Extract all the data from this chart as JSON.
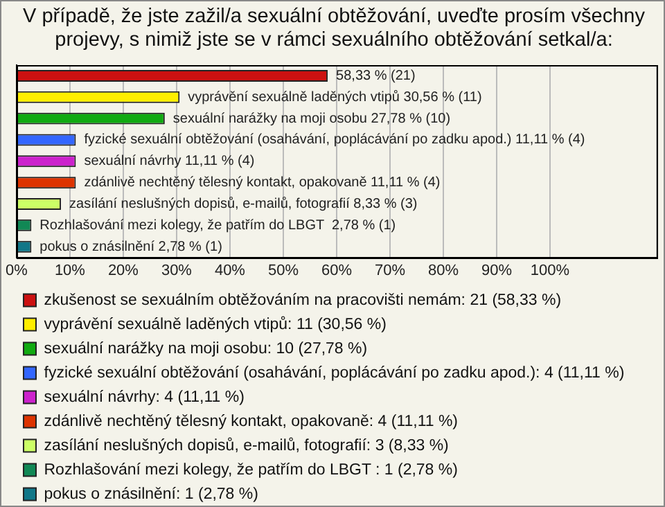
{
  "chart_data": {
    "type": "bar",
    "orientation": "horizontal",
    "title": "V případě, že jste zažil/a sexuální obtěžování, uveďte prosím všechny projevy, s nimiž jste se v rámci sexuálního obtěžování setkal/a:",
    "categories": [
      null,
      null,
      null,
      null,
      null,
      null,
      null,
      null,
      null
    ],
    "series": [
      {
        "name": "zkušenost se sexuálním obtěžováním na pracovišti nemám: 21 (58,33 %)",
        "color": "#cc1111",
        "values": [
          58.33,
          null,
          null,
          null,
          null,
          null,
          null,
          null,
          null
        ],
        "value_labels": [
          "58,33 % (21)",
          null,
          null,
          null,
          null,
          null,
          null,
          null,
          null
        ]
      },
      {
        "name": "vyprávění sexuálně laděných vtipů: 11 (30,56 %)",
        "color": "#ffee00",
        "values": [
          null,
          30.56,
          null,
          null,
          null,
          null,
          null,
          null,
          null
        ],
        "value_labels": [
          null,
          "vyprávění sexuálně laděných vtipů 30,56 % (11)",
          null,
          null,
          null,
          null,
          null,
          null,
          null
        ]
      },
      {
        "name": "sexuální narážky na moji osobu: 10 (27,78 %)",
        "color": "#11aa11",
        "values": [
          null,
          null,
          27.78,
          null,
          null,
          null,
          null,
          null,
          null
        ],
        "value_labels": [
          null,
          null,
          "sexuální narážky na moji osobu 27,78 % (10)",
          null,
          null,
          null,
          null,
          null,
          null
        ]
      },
      {
        "name": "fyzické sexuální obtěžování (osahávání, poplácávání po zadku apod.): 4 (11,11 %)",
        "color": "#3366ff",
        "values": [
          null,
          null,
          null,
          11.11,
          null,
          null,
          null,
          null,
          null
        ],
        "value_labels": [
          null,
          null,
          null,
          "fyzické sexuální obtěžování (osahávání, poplácávání po zadku apod.) 11,11 % (4)",
          null,
          null,
          null,
          null,
          null
        ]
      },
      {
        "name": "sexuální návrhy: 4 (11,11 %)",
        "color": "#cc22cc",
        "values": [
          null,
          null,
          null,
          null,
          11.11,
          null,
          null,
          null,
          null
        ],
        "value_labels": [
          null,
          null,
          null,
          null,
          "sexuální návrhy 11,11 % (4)",
          null,
          null,
          null,
          null
        ]
      },
      {
        "name": "zdánlivě nechtěný tělesný kontakt, opakovaně: 4 (11,11 %)",
        "color": "#dd3300",
        "values": [
          null,
          null,
          null,
          null,
          null,
          11.11,
          null,
          null,
          null
        ],
        "value_labels": [
          null,
          null,
          null,
          null,
          null,
          "zdánlivě nechtěný tělesný kontakt, opakovaně 11,11 % (4)",
          null,
          null,
          null
        ]
      },
      {
        "name": "zasílání neslušných dopisů, e-mailů, fotografií: 3 (8,33 %)",
        "color": "#ccff66",
        "values": [
          null,
          null,
          null,
          null,
          null,
          null,
          8.33,
          null,
          null
        ],
        "value_labels": [
          null,
          null,
          null,
          null,
          null,
          null,
          "zasílání neslušných dopisů, e-mailů, fotografií 8,33 % (3)",
          null,
          null
        ]
      },
      {
        "name": "Rozhlašování mezi kolegy, že patřím do LBGT : 1 (2,78 %)",
        "color": "#118855",
        "values": [
          null,
          null,
          null,
          null,
          null,
          null,
          null,
          2.78,
          null
        ],
        "value_labels": [
          null,
          null,
          null,
          null,
          null,
          null,
          null,
          "Rozhlašování mezi kolegy, že patřím do LBGT  2,78 % (1)",
          null
        ]
      },
      {
        "name": "pokus o znásilnění: 1 (2,78 %)",
        "color": "#117788",
        "values": [
          null,
          null,
          null,
          null,
          null,
          null,
          null,
          null,
          2.78
        ],
        "value_labels": [
          null,
          null,
          null,
          null,
          null,
          null,
          null,
          null,
          "pokus o znásilnění 2,78 % (1)"
        ]
      }
    ],
    "xlim": [
      0,
      120
    ],
    "xticks": [
      {
        "value": 0,
        "label": "0%"
      },
      {
        "value": 10,
        "label": "10%"
      },
      {
        "value": 20,
        "label": "20%"
      },
      {
        "value": 30,
        "label": "30%"
      },
      {
        "value": 40,
        "label": "40%"
      },
      {
        "value": 50,
        "label": "50%"
      },
      {
        "value": 60,
        "label": "60%"
      },
      {
        "value": 70,
        "label": "70%"
      },
      {
        "value": 80,
        "label": "80%"
      },
      {
        "value": 90,
        "label": "90%"
      },
      {
        "value": 100,
        "label": "100%"
      },
      {
        "value": 120,
        "label": null
      }
    ],
    "grid": "x",
    "tick_labels": "x",
    "legend": "bottom"
  }
}
